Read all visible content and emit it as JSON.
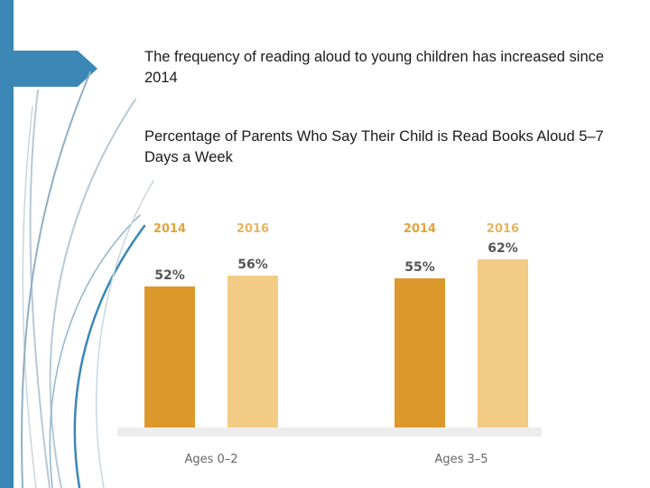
{
  "slide": {
    "headline": "The frequency of reading aloud to young children has increased since 2014",
    "colors": {
      "accent": "#3b87b5",
      "bar_2014": "#dc982a",
      "bar_2016": "#f2cb85",
      "baseline": "#ededed"
    }
  },
  "chart_data": {
    "type": "bar",
    "title": "Percentage of Parents Who Say Their Child is Read Books Aloud 5–7 Days a Week",
    "categories": [
      "Ages 0–2",
      "Ages 3–5"
    ],
    "series": [
      {
        "name": "2014",
        "values": [
          52,
          55
        ],
        "labels": [
          "52%",
          "55%"
        ]
      },
      {
        "name": "2016",
        "values": [
          56,
          62
        ],
        "labels": [
          "56%",
          "62%"
        ]
      }
    ],
    "xlabel": "",
    "ylabel": "",
    "ylim": [
      0,
      100
    ],
    "grid": false
  }
}
